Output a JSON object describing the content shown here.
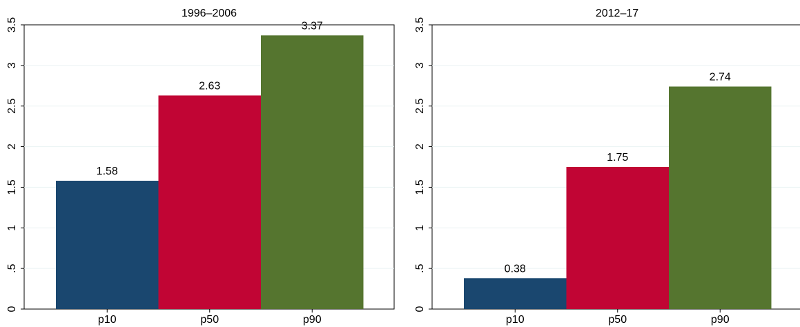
{
  "chart_data": [
    {
      "type": "bar",
      "title": "1996–2006",
      "categories": [
        "p10",
        "p50",
        "p90"
      ],
      "values": [
        1.58,
        2.63,
        3.37
      ],
      "data_labels": [
        "1.58",
        "2.63",
        "3.37"
      ],
      "ylim": [
        0,
        3.5
      ],
      "yticks": [
        0,
        0.5,
        1,
        1.5,
        2,
        2.5,
        3,
        3.5
      ],
      "ytick_labels": [
        "0",
        ".5",
        "1",
        "1.5",
        "2",
        "2.5",
        "3",
        "3.5"
      ],
      "grid": true,
      "colors": [
        "#1a476f",
        "#c10534",
        "#55752f"
      ]
    },
    {
      "type": "bar",
      "title": "2012–17",
      "categories": [
        "p10",
        "p50",
        "p90"
      ],
      "values": [
        0.38,
        1.75,
        2.74
      ],
      "data_labels": [
        "0.38",
        "1.75",
        "2.74"
      ],
      "ylim": [
        0,
        3.5
      ],
      "yticks": [
        0,
        0.5,
        1,
        1.5,
        2,
        2.5,
        3,
        3.5
      ],
      "ytick_labels": [
        "0",
        ".5",
        "1",
        "1.5",
        "2",
        "2.5",
        "3",
        "3.5"
      ],
      "grid": true,
      "colors": [
        "#1a476f",
        "#c10534",
        "#55752f"
      ]
    }
  ]
}
